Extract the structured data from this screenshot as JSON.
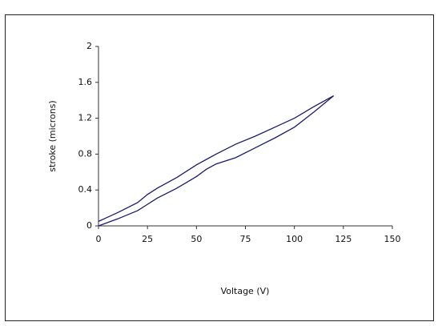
{
  "chart_data": {
    "type": "line",
    "xlabel": "Voltage (V)",
    "ylabel": "stroke (microns)",
    "x": [
      0,
      10,
      20,
      25,
      30,
      40,
      50,
      55,
      60,
      70,
      80,
      90,
      100,
      110,
      120
    ],
    "series": [
      {
        "color": "#1c1c6b",
        "values": [
          0,
          0.08,
          0.17,
          0.24,
          0.31,
          0.42,
          0.55,
          0.63,
          0.69,
          0.76,
          0.87,
          0.98,
          1.1,
          1.27,
          1.45
        ]
      },
      {
        "color": "#1c1c6b",
        "values": [
          0.05,
          0.15,
          0.26,
          0.35,
          0.42,
          0.54,
          0.68,
          0.74,
          0.8,
          0.91,
          1.0,
          1.1,
          1.2,
          1.33,
          1.45
        ]
      }
    ],
    "xlim": [
      0,
      150
    ],
    "xticks": [
      0,
      25,
      50,
      75,
      100,
      125,
      150
    ],
    "ylim": [
      0,
      2
    ],
    "yticks": [
      0,
      0.4,
      0.8,
      1.2,
      1.6,
      2
    ],
    "grid": false
  }
}
